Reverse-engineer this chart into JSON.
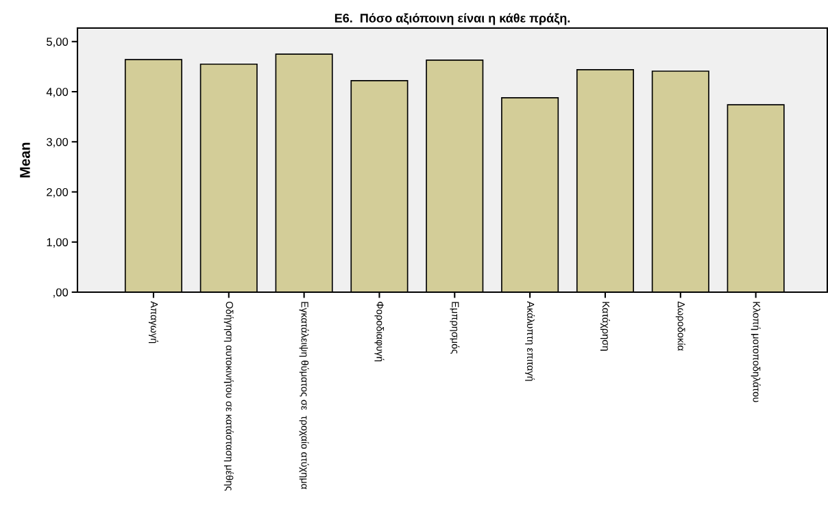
{
  "chart_data": {
    "type": "bar",
    "title": "Ε6.  Πόσο αξιόποινη είναι η κάθε πράξη.",
    "ylabel": "Mean",
    "categories": [
      "Απαγωγή",
      "Οδήγηση αυτοκινήτου σε κατάσταση μέθης",
      "Εγκατάλειψη θύματος σε  τροχαίο ατύχημα",
      "Φοροδιαφυγή",
      "Εμπρησμός",
      "Ακάλυπτη επιταγή",
      "Κατάχρηση",
      "Δωροδοκία",
      "Κλοπή μοτοποδηλάτου"
    ],
    "values": [
      4.64,
      4.55,
      4.75,
      4.22,
      4.63,
      3.88,
      4.44,
      4.41,
      3.74
    ],
    "color": "#d3cd98",
    "ylim": [
      0,
      5.27
    ],
    "yticks": [
      {
        "value": 0,
        "label": ",00"
      },
      {
        "value": 1,
        "label": "1,00"
      },
      {
        "value": 2,
        "label": "2,00"
      },
      {
        "value": 3,
        "label": "3,00"
      },
      {
        "value": 4,
        "label": "4,00"
      },
      {
        "value": 5,
        "label": "5,00"
      }
    ],
    "grid": false
  }
}
